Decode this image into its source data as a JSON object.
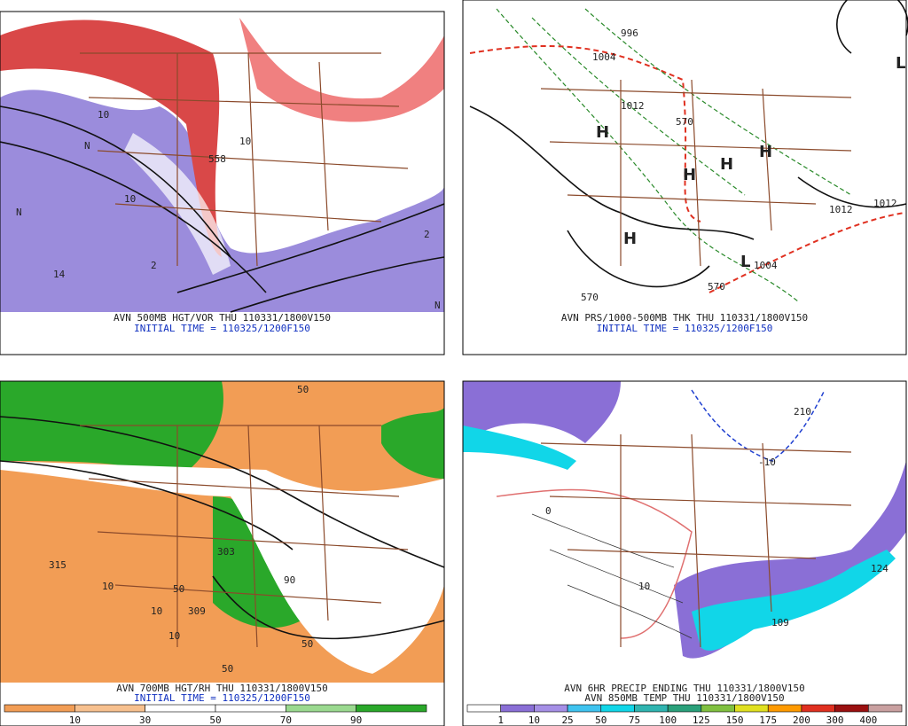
{
  "panels": [
    {
      "caption": "AVN 500MB HGT/VOR THU 110331/1800V150",
      "subcaption": "INITIAL TIME = 110325/1200F150",
      "labels": [
        "N",
        "10",
        "14",
        "2",
        "N",
        "10",
        "N",
        "558",
        "10",
        "2"
      ]
    },
    {
      "caption": "AVN PRS/1000-500MB THK THU 110331/1800V150",
      "subcaption": "INITIAL TIME = 110325/1200F150",
      "labels": [
        "996",
        "1004",
        "1012",
        "H",
        "H",
        "H",
        "H",
        "H",
        "L",
        "L",
        "1004",
        "1012",
        "1012",
        "570",
        "570",
        "570"
      ]
    },
    {
      "caption": "AVN 700MB HGT/RH THU 110331/1800V150",
      "subcaption": "INITIAL TIME = 110325/1200F150",
      "labels": [
        "315",
        "10",
        "10",
        "309",
        "50",
        "50",
        "303",
        "90",
        "50",
        "10",
        "50"
      ],
      "colorbar": {
        "labels": [
          10,
          30,
          50,
          70,
          90
        ],
        "colors": [
          "#f29d55",
          "#f7c08e",
          "#ffffff",
          "#ffffff",
          "#9ad98f",
          "#2aa82a"
        ]
      }
    },
    {
      "caption": "AVN 6HR PRECIP ENDING THU 110331/1800V150",
      "subcaption": "AVN 850MB TEMP THU 110331/1800V150",
      "labels": [
        "210",
        "-10",
        "124",
        "109",
        "10",
        "0"
      ],
      "colorbar": {
        "labels": [
          1,
          10,
          25,
          50,
          75,
          100,
          125,
          150,
          175,
          200,
          300,
          400
        ],
        "colors": [
          "#ffffff",
          "#8a6fd6",
          "#a58fe6",
          "#3fc3ef",
          "#11d6e8",
          "#2fb4b0",
          "#2aa07a",
          "#80c040",
          "#e0e020",
          "#ff9a00",
          "#e03020",
          "#9a1010",
          "#c9a0a0"
        ]
      }
    }
  ]
}
